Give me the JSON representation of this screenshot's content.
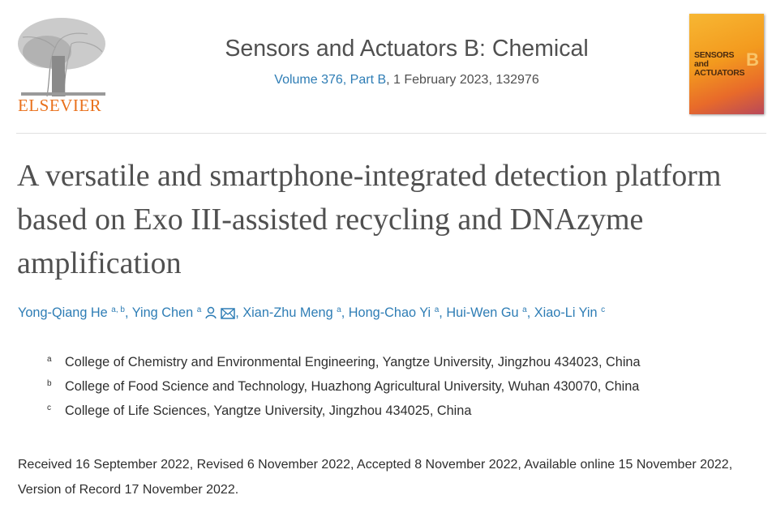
{
  "header": {
    "publisher_logo_text": "ELSEVIER",
    "journal_title": "Sensors and Actuators B: Chemical",
    "volume_link": "Volume 376, Part B",
    "issue_rest": ", 1 February 2023, 132976",
    "cover_title": "SENSORS and ACTUATORS",
    "cover_letter": "B"
  },
  "article": {
    "title": "A versatile and smartphone-integrated detection platform based on Exo III-assisted recycling and DNAzyme amplification",
    "authors": [
      {
        "name": "Yong-Qiang He",
        "sup": "a, b"
      },
      {
        "name": "Ying Chen",
        "sup": "a",
        "icons": [
          "person-icon",
          "envelope-icon"
        ]
      },
      {
        "name": "Xian-Zhu Meng",
        "sup": "a"
      },
      {
        "name": "Hong-Chao Yi",
        "sup": "a"
      },
      {
        "name": "Hui-Wen Gu",
        "sup": "a"
      },
      {
        "name": "Xiao-Li Yin",
        "sup": "c"
      }
    ],
    "affiliations": [
      {
        "mark": "a",
        "text": "College of Chemistry and Environmental Engineering, Yangtze University, Jingzhou 434023, China"
      },
      {
        "mark": "b",
        "text": "College of Food Science and Technology, Huazhong Agricultural University, Wuhan 430070, China"
      },
      {
        "mark": "c",
        "text": "College of Life Sciences, Yangtze University, Jingzhou 434025, China"
      }
    ],
    "dates": "Received 16 September 2022, Revised 6 November 2022, Accepted 8 November 2022, Available online 15 November 2022, Version of Record 17 November 2022.",
    "colors": {
      "link": "#2e7db5",
      "publisher": "#e9711c",
      "title": "#505050"
    }
  }
}
